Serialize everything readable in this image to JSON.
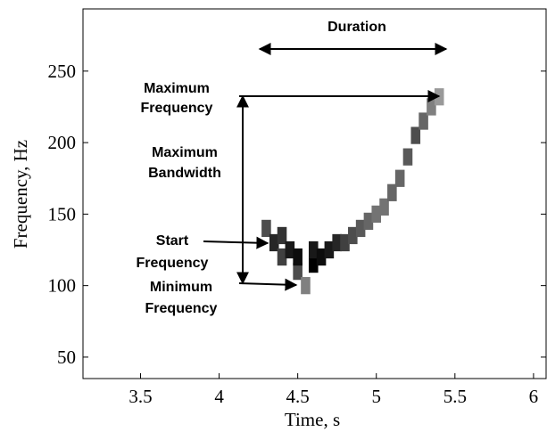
{
  "chart_data": {
    "type": "spectrogram",
    "xlabel": "Time, s",
    "ylabel": "Frequency, Hz",
    "xlim": [
      3.134,
      6.08
    ],
    "ylim": [
      35,
      293.5
    ],
    "xticks": [
      3.5,
      4,
      4.5,
      5,
      5.5,
      6
    ],
    "yticks": [
      50,
      100,
      150,
      200,
      250
    ],
    "x": [
      4.3,
      4.35,
      4.4,
      4.4,
      4.45,
      4.5,
      4.5,
      4.55,
      4.6,
      4.6,
      4.65,
      4.7,
      4.75,
      4.8,
      4.85,
      4.9,
      4.95,
      5.0,
      5.05,
      5.1,
      5.15,
      5.2,
      5.25,
      5.3,
      5.35,
      5.4
    ],
    "y": [
      140,
      130,
      135,
      120,
      125,
      110,
      120,
      100,
      115,
      125,
      120,
      125,
      130,
      130,
      135,
      140,
      145,
      150,
      155,
      165,
      175,
      190,
      205,
      215,
      225,
      232
    ],
    "values": [
      0.7,
      0.85,
      0.8,
      0.75,
      0.9,
      0.7,
      0.95,
      0.5,
      1,
      0.9,
      0.95,
      0.9,
      0.85,
      0.75,
      0.7,
      0.65,
      0.6,
      0.55,
      0.55,
      0.6,
      0.6,
      0.65,
      0.7,
      0.6,
      0.5,
      0.4
    ],
    "annotations": [
      [
        "Duration"
      ],
      [
        "Maximum",
        "Frequency"
      ],
      [
        "Maximum",
        "Bandwidth"
      ],
      [
        "Start",
        "Frequency"
      ],
      [
        "Minimum",
        "Frequency"
      ]
    ]
  }
}
